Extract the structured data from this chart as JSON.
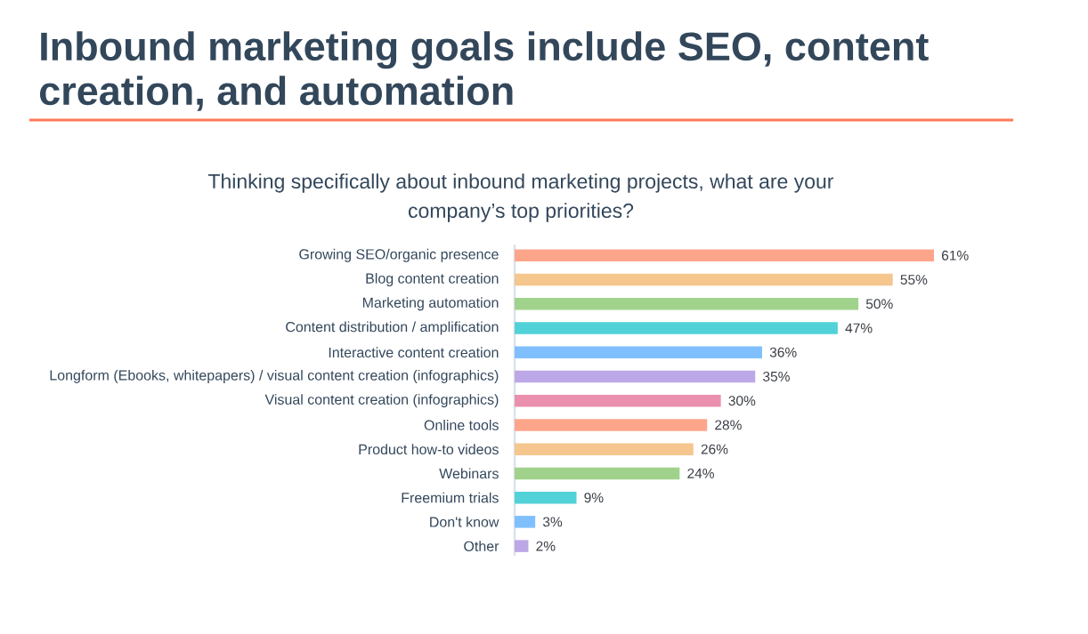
{
  "chart_data": {
    "type": "bar",
    "orientation": "horizontal",
    "title": "Inbound marketing goals include SEO, content creation, and automation",
    "subtitle": "Thinking specifically about inbound marketing projects, what are your company’s top priorities?",
    "categories": [
      "Growing SEO/organic presence",
      "Blog content creation",
      "Marketing automation",
      "Content distribution / amplification",
      "Interactive content creation",
      "Longform (Ebooks, whitepapers) / visual content creation (infographics)",
      "Visual content creation (infographics)",
      "Online tools",
      "Product how-to videos",
      "Webinars",
      "Freemium trials",
      "Don't know",
      "Other"
    ],
    "values": [
      61,
      55,
      50,
      47,
      36,
      35,
      30,
      28,
      26,
      24,
      9,
      3,
      2
    ],
    "colors": [
      "#fda58b",
      "#f5c68e",
      "#a0d28c",
      "#51d2d8",
      "#80bffe",
      "#bca8e6",
      "#ea90ae",
      "#fda58b",
      "#f5c68e",
      "#a0d28c",
      "#51d2d8",
      "#80bffe",
      "#bca8e6"
    ],
    "value_labels": [
      "61%",
      "55%",
      "50%",
      "47%",
      "36%",
      "35%",
      "30%",
      "28%",
      "26%",
      "24%",
      "9%",
      "3%",
      "2%"
    ]
  }
}
